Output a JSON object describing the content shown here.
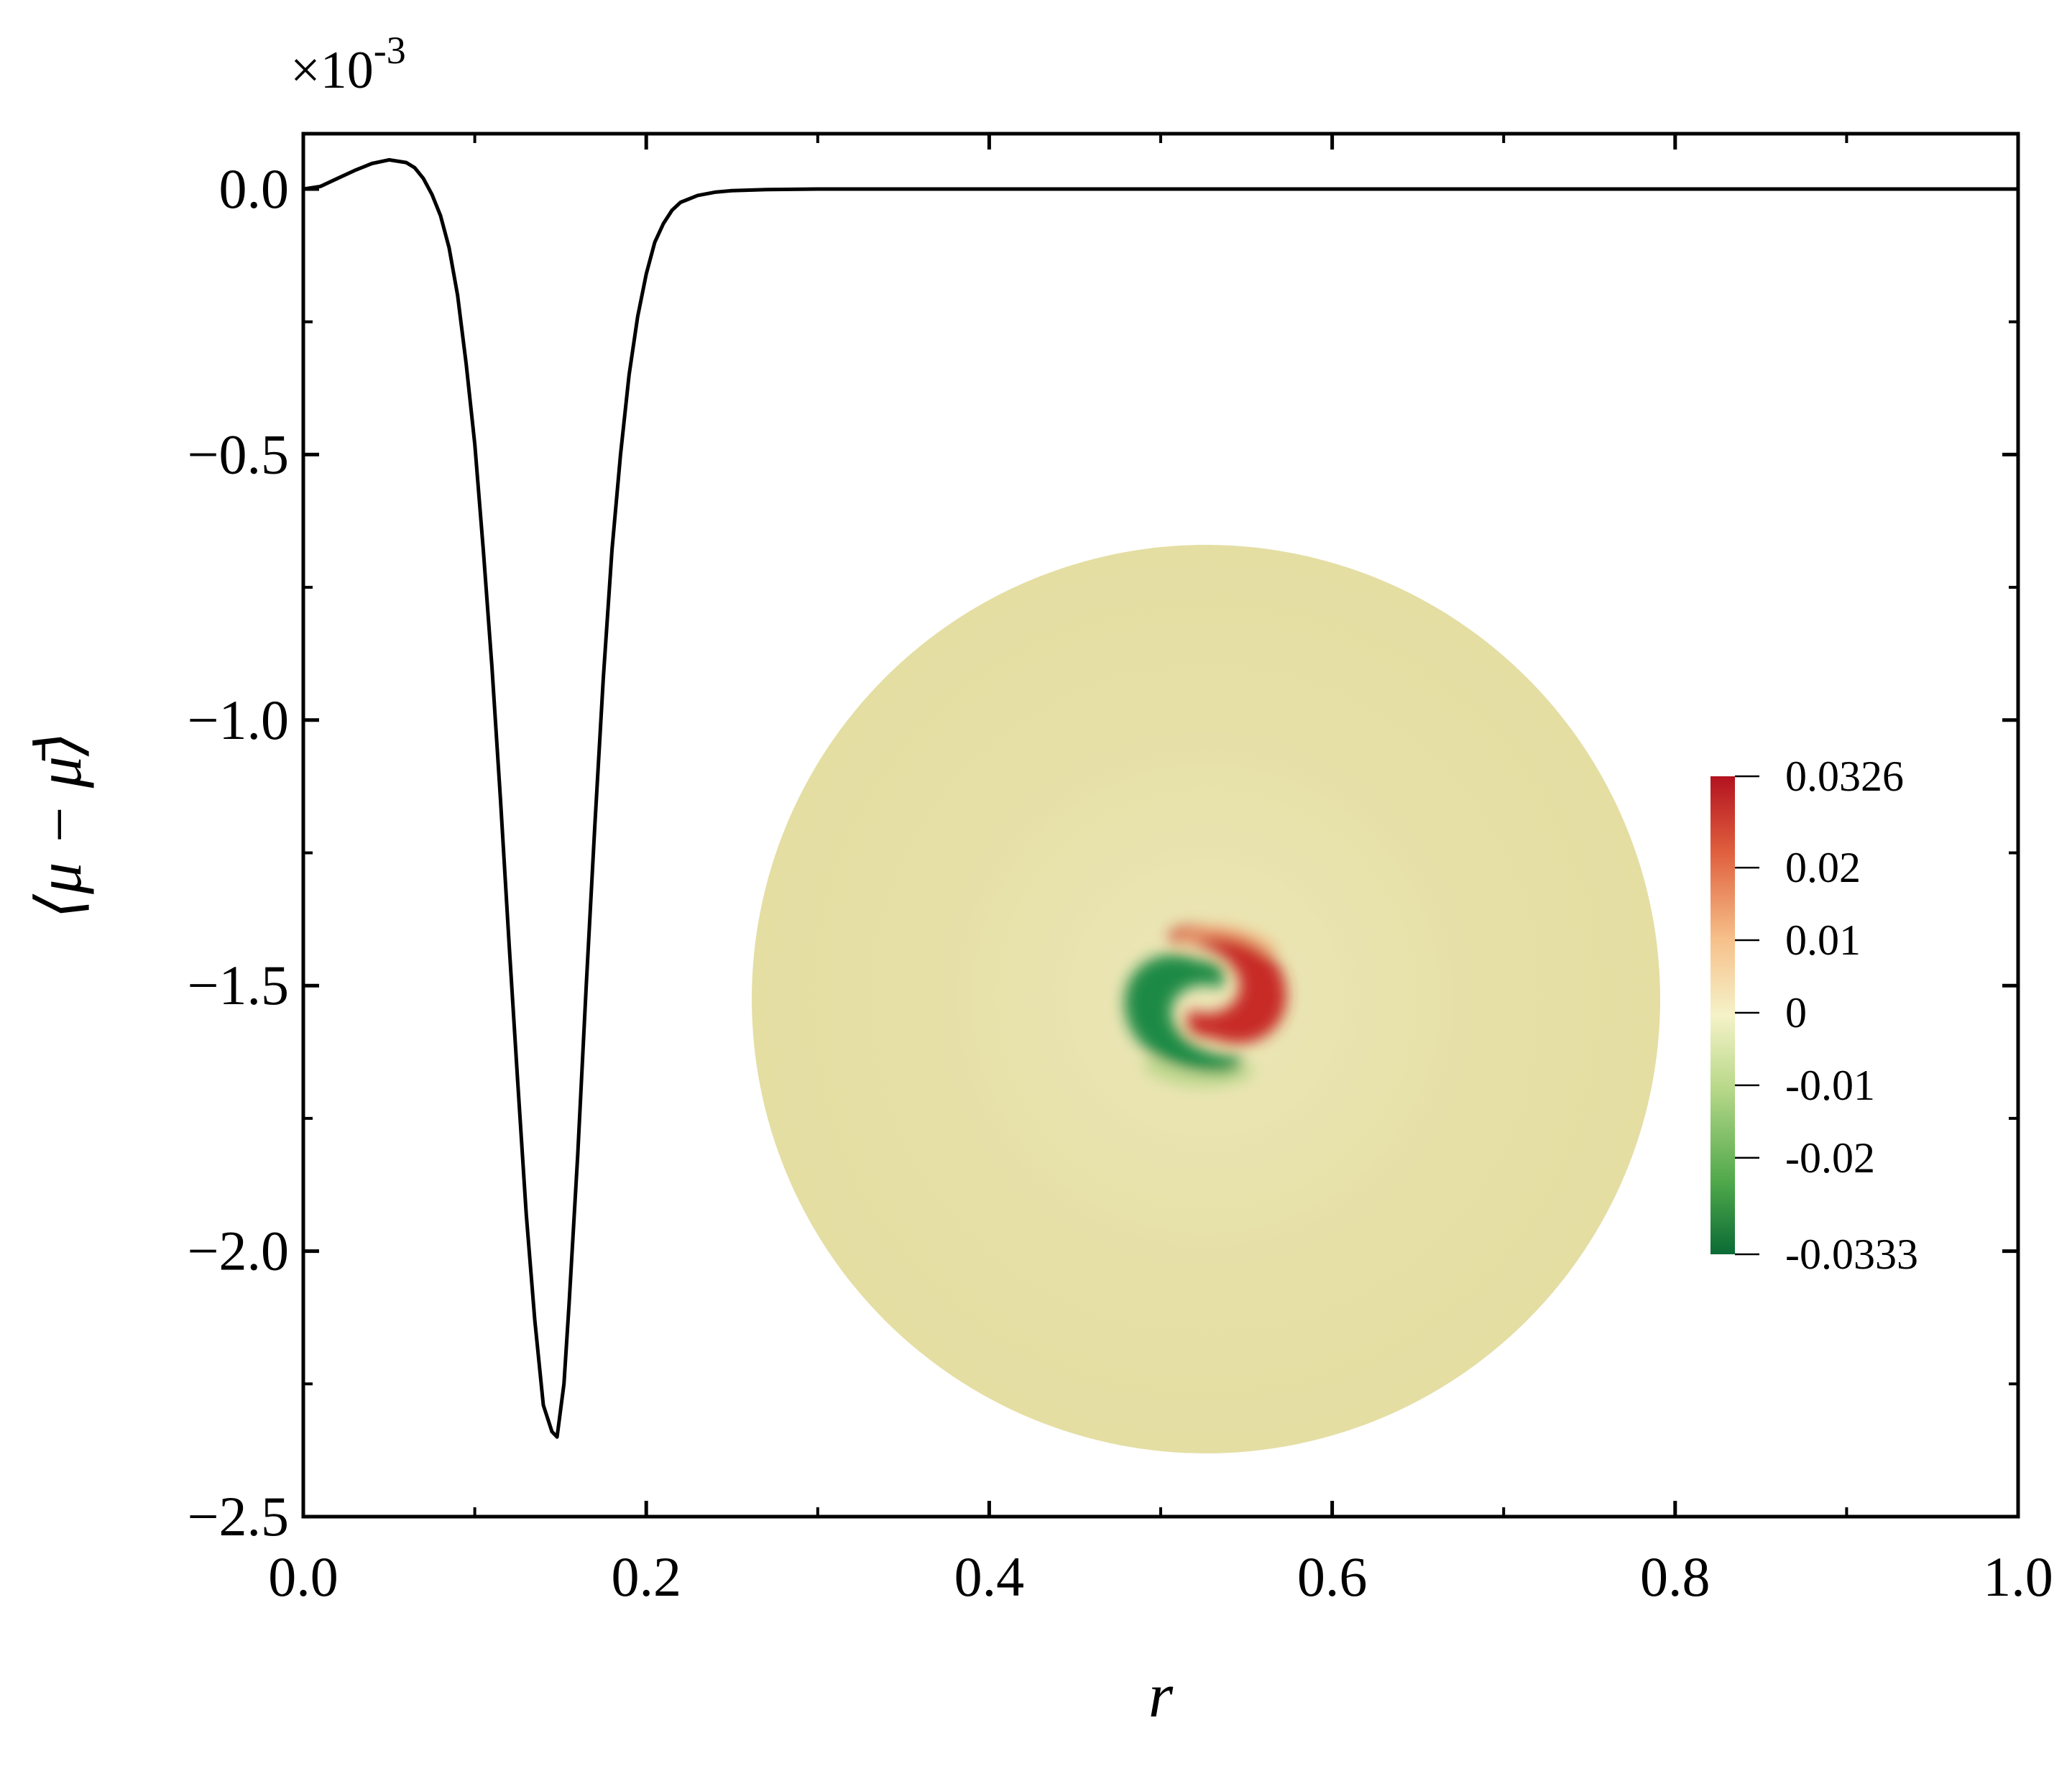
{
  "chart_data": {
    "type": "line",
    "title": "",
    "xlabel": "r",
    "ylabel": "⟨μ − μ̄⟩",
    "y_multiplier": "×10",
    "y_multiplier_exp": "-3",
    "xlim": [
      0.0,
      1.0
    ],
    "ylim": [
      -2.5,
      0.1
    ],
    "x_ticks": [
      0.0,
      0.2,
      0.4,
      0.6,
      0.8,
      1.0
    ],
    "x_tick_labels": [
      "0.0",
      "0.2",
      "0.4",
      "0.6",
      "0.8",
      "1.0"
    ],
    "y_ticks": [
      0.0,
      -0.5,
      -1.0,
      -1.5,
      -2.0,
      -2.5
    ],
    "y_tick_labels": [
      "0.0",
      "−0.5",
      "−1.0",
      "−1.5",
      "−2.0",
      "−2.5"
    ],
    "grid": false,
    "series": [
      {
        "line_color": "#000000",
        "x": [
          0.0,
          0.01,
          0.02,
          0.03,
          0.04,
          0.05,
          0.06,
          0.065,
          0.07,
          0.075,
          0.08,
          0.085,
          0.09,
          0.095,
          0.1,
          0.105,
          0.11,
          0.115,
          0.12,
          0.125,
          0.13,
          0.135,
          0.14,
          0.145,
          0.148,
          0.152,
          0.155,
          0.16,
          0.165,
          0.17,
          0.175,
          0.18,
          0.185,
          0.19,
          0.195,
          0.2,
          0.205,
          0.21,
          0.215,
          0.22,
          0.23,
          0.24,
          0.25,
          0.27,
          0.3,
          0.4,
          0.5,
          0.6,
          0.7,
          0.8,
          0.9,
          1.0
        ],
        "y": [
          0.0,
          0.005,
          0.02,
          0.035,
          0.048,
          0.055,
          0.05,
          0.04,
          0.02,
          -0.01,
          -0.05,
          -0.11,
          -0.2,
          -0.33,
          -0.48,
          -0.68,
          -0.9,
          -1.15,
          -1.42,
          -1.68,
          -1.93,
          -2.13,
          -2.29,
          -2.34,
          -2.35,
          -2.25,
          -2.1,
          -1.82,
          -1.5,
          -1.2,
          -0.92,
          -0.68,
          -0.5,
          -0.35,
          -0.24,
          -0.16,
          -0.1,
          -0.065,
          -0.04,
          -0.025,
          -0.012,
          -0.006,
          -0.003,
          -0.001,
          0.0,
          0.0,
          0.0,
          0.0,
          0.0,
          0.0,
          0.0,
          0.0
        ]
      }
    ],
    "inset": {
      "type": "heatmap",
      "shape": "disk",
      "background_color": "#e6e0a7",
      "colorbar": {
        "min": -0.0333,
        "max": 0.0326,
        "ticks": [
          0.0326,
          0.02,
          0.01,
          0,
          -0.01,
          -0.02,
          -0.0333
        ],
        "tick_labels": [
          "0.0326",
          "0.02",
          "0.01",
          "0",
          "-0.01",
          "-0.02",
          "-0.0333"
        ],
        "colors": [
          "#0a6b35",
          "#4fa84a",
          "#b9d98a",
          "#f5f2c8",
          "#f6c08a",
          "#e0603e",
          "#b3121f"
        ]
      }
    }
  }
}
